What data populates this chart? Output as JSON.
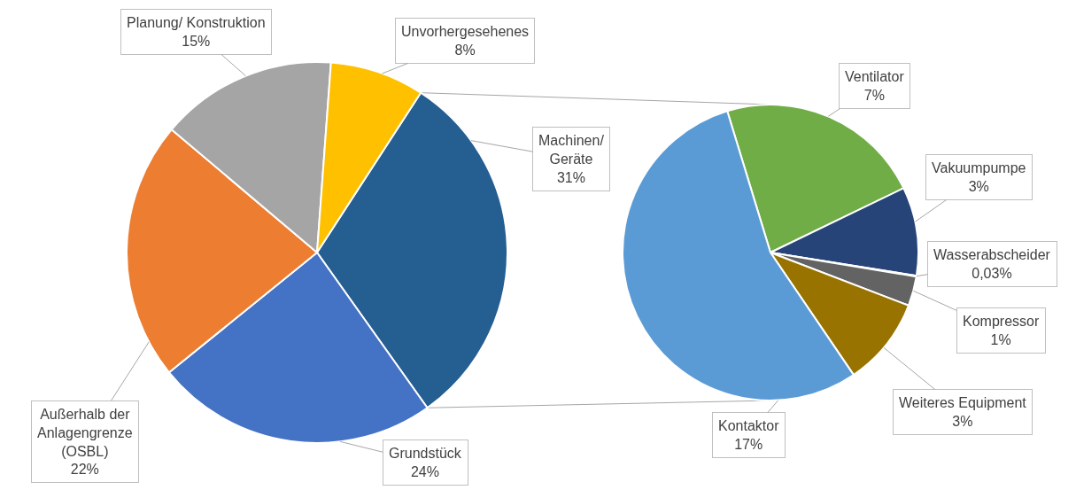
{
  "chart_data": [
    {
      "type": "pie",
      "categories": [
        "Machinen/ Geräte",
        "Grundstück",
        "Außerhalb der Anlagengrenze (OSBL)",
        "Planung/ Konstruktion",
        "Unvorhergesehenes"
      ],
      "values": [
        31,
        24,
        22,
        15,
        8
      ],
      "value_labels": [
        "31%",
        "24%",
        "22%",
        "15%",
        "8%"
      ],
      "colors": [
        "#255e91",
        "#4472c4",
        "#ed7d31",
        "#a5a5a5",
        "#ffc000"
      ],
      "legend": false
    },
    {
      "type": "pie",
      "categories": [
        "Ventilator",
        "Vakuumpumpe",
        "Wasserabscheider",
        "Kompressor",
        "Weiteres Equipment",
        "Kontaktor"
      ],
      "values": [
        7,
        3,
        0.03,
        1,
        3,
        17
      ],
      "value_labels": [
        "7%",
        "3%",
        "0,03%",
        "1%",
        "3%",
        "17%"
      ],
      "colors": [
        "#70ad47",
        "#264478",
        "#9e480e",
        "#636363",
        "#997300",
        "#5b9bd5"
      ],
      "legend": false
    }
  ]
}
